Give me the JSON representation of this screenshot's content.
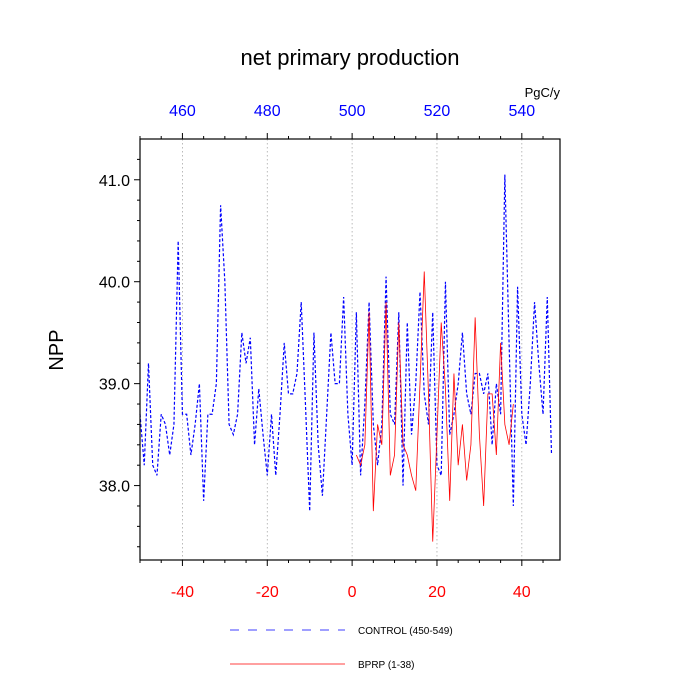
{
  "chart_data": {
    "type": "line",
    "title": "net primary production",
    "ylabel": "NPP",
    "units_label": "PgC/y",
    "xlim": [
      -50,
      49
    ],
    "ylim": [
      37.27,
      41.4
    ],
    "grid_x": [
      -40,
      -20,
      0,
      20,
      40
    ],
    "yticks": [
      38.0,
      39.0,
      40.0,
      41.0
    ],
    "ytick_labels": [
      "38.0",
      "39.0",
      "40.0",
      "41.0"
    ],
    "xticks_bottom": [
      -40,
      -20,
      0,
      20,
      40
    ],
    "xtick_bottom_labels": [
      "-40",
      "-20",
      "0",
      "20",
      "40"
    ],
    "xtick_bottom_color": "#ff0000",
    "xticks_top": [
      -40,
      -20,
      0,
      20,
      40
    ],
    "xtick_top_labels": [
      "460",
      "480",
      "500",
      "520",
      "540"
    ],
    "xtick_top_color": "#0000ff",
    "legend_placement": "bottom",
    "legend": [
      {
        "label": "CONTROL (450-549)",
        "color": "#0000ff",
        "style": "dashed"
      },
      {
        "label": "BPRP (1-38)",
        "color": "#ff0000",
        "style": "solid"
      }
    ],
    "series": [
      {
        "name": "CONTROL (450-549)",
        "color": "#0000ff",
        "style": "dashed",
        "x_start": -50,
        "values": [
          38.7,
          38.2,
          39.2,
          38.2,
          38.1,
          38.7,
          38.6,
          38.3,
          38.6,
          40.4,
          38.7,
          38.7,
          38.3,
          38.6,
          39.0,
          37.85,
          38.7,
          38.7,
          39.0,
          40.75,
          40.0,
          38.6,
          38.5,
          38.7,
          39.5,
          39.2,
          39.45,
          38.4,
          38.95,
          38.5,
          38.1,
          38.7,
          38.1,
          38.7,
          39.4,
          38.9,
          38.9,
          39.1,
          39.8,
          38.8,
          37.75,
          39.5,
          38.4,
          37.9,
          38.7,
          39.5,
          39.0,
          39.0,
          39.85,
          38.7,
          38.2,
          39.7,
          38.1,
          38.8,
          39.8,
          38.6,
          38.2,
          38.6,
          40.05,
          38.7,
          38.6,
          39.7,
          38.0,
          39.6,
          38.5,
          39.0,
          39.9,
          38.9,
          38.6,
          39.7,
          38.2,
          38.1,
          40.0,
          38.5,
          38.7,
          39.0,
          39.5,
          38.9,
          38.7,
          39.1,
          39.1,
          38.9,
          39.1,
          38.4,
          39.0,
          38.7,
          41.05,
          39.4,
          37.8,
          39.95,
          38.7,
          38.4,
          39.0,
          39.8,
          39.2,
          38.7,
          39.85,
          38.3
        ]
      },
      {
        "name": "BPRP (1-38)",
        "color": "#ff0000",
        "style": "solid",
        "x_start": 1,
        "values": [
          38.3,
          38.2,
          38.4,
          39.7,
          37.75,
          38.6,
          38.4,
          39.8,
          38.1,
          38.3,
          39.6,
          38.4,
          38.3,
          38.1,
          37.95,
          39.0,
          40.1,
          38.9,
          37.45,
          38.5,
          39.6,
          38.95,
          37.85,
          39.1,
          38.2,
          38.6,
          38.05,
          38.4,
          39.65,
          38.5,
          37.8,
          38.9,
          38.9,
          38.3,
          39.4,
          38.6,
          38.4,
          38.8
        ]
      }
    ]
  }
}
